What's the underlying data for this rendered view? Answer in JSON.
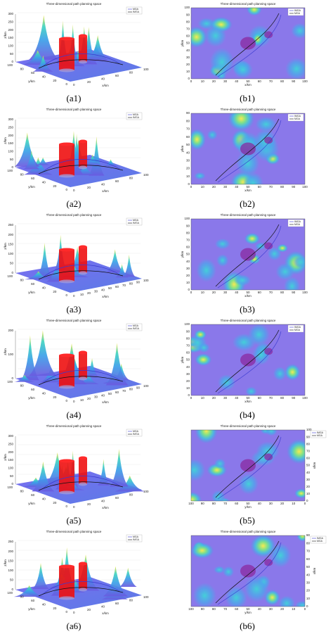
{
  "panels": [
    {
      "label": "(a1)",
      "title": "Three-dimensional path planning space",
      "legend": [
        "MGA",
        "IMGA"
      ],
      "x_label": "x/km",
      "y_label": "y/km",
      "z_label": "z/km",
      "x_ticks": [
        0,
        20,
        40,
        60,
        80,
        100
      ],
      "y_ticks": [
        100,
        80,
        60,
        40,
        20,
        0
      ],
      "z_ticks": [
        0,
        50,
        100,
        150,
        200,
        250,
        300
      ]
    },
    {
      "label": "(b1)",
      "title": "Three-dimensional path planning space",
      "legend": [
        "IMGA",
        "MGA"
      ],
      "x_label": "x/km",
      "y_label": "y/km",
      "x_ticks": [
        0,
        10,
        20,
        30,
        40,
        50,
        60,
        70,
        80,
        90,
        100
      ],
      "y_ticks": [
        0,
        10,
        20,
        30,
        40,
        50,
        60,
        70,
        80,
        90,
        100
      ],
      "y_axis_side": "left"
    },
    {
      "label": "(a2)",
      "title": "Three-dimensional path planning space",
      "legend": [
        "MGA",
        "IMGA"
      ],
      "x_label": "x/km",
      "y_label": "y/km",
      "z_label": "z/km",
      "x_ticks": [
        0,
        20,
        40,
        60,
        80,
        100
      ],
      "y_ticks": [
        100,
        80,
        60,
        40,
        20,
        0
      ],
      "z_ticks": [
        0,
        50,
        100,
        150,
        200,
        250,
        300
      ]
    },
    {
      "label": "(b2)",
      "title": "Three-dimensional path planning space",
      "legend": [
        "IMGA",
        "MGA"
      ],
      "x_label": "x/km",
      "y_label": "y/km",
      "x_ticks": [
        0,
        10,
        20,
        30,
        40,
        50,
        60,
        70,
        80,
        90,
        100
      ],
      "y_ticks": [
        0,
        10,
        20,
        30,
        40,
        50,
        60,
        70,
        80,
        90
      ],
      "y_axis_side": "left"
    },
    {
      "label": "(a3)",
      "title": "Three-dimensional path planning space",
      "legend": [
        "MGA",
        "IMGA"
      ],
      "x_label": "x/km",
      "y_label": "y/km",
      "z_label": "z/km",
      "x_ticks": [
        0,
        10,
        20,
        30,
        40,
        50,
        60,
        70,
        80,
        90,
        100
      ],
      "y_ticks": [
        100,
        80,
        60,
        40,
        20,
        0
      ],
      "z_ticks": [
        0,
        50,
        100,
        150,
        200,
        250
      ]
    },
    {
      "label": "(b3)",
      "title": "Three-dimensional path planning space",
      "legend": [
        "IMGA",
        "MGA"
      ],
      "x_label": "x/km",
      "y_label": "y/km",
      "x_ticks": [
        0,
        10,
        20,
        30,
        40,
        50,
        60,
        70,
        80,
        90,
        100
      ],
      "y_ticks": [
        0,
        10,
        20,
        30,
        40,
        50,
        60,
        70,
        80,
        90,
        100
      ],
      "y_axis_side": "left"
    },
    {
      "label": "(a4)",
      "title": "Three-dimensional path planning space",
      "legend": [
        "MGA",
        "IMGA"
      ],
      "x_label": "x/km",
      "y_label": "y/km",
      "z_label": "z/km",
      "x_ticks": [
        0,
        10,
        20,
        30,
        40,
        50,
        60,
        70,
        80,
        90,
        100
      ],
      "y_ticks": [
        100,
        80,
        60,
        40,
        20,
        0
      ],
      "z_ticks": [
        0,
        100,
        200
      ]
    },
    {
      "label": "(b4)",
      "title": "Three-dimensional path planning space",
      "legend": [
        "IMGA",
        "MGA"
      ],
      "x_label": "x/km",
      "y_label": "y/km",
      "x_ticks": [
        0,
        10,
        20,
        30,
        40,
        50,
        60,
        70,
        80,
        90,
        100
      ],
      "y_ticks": [
        0,
        10,
        20,
        30,
        40,
        50,
        60,
        70,
        80,
        90,
        100
      ],
      "y_axis_side": "left"
    },
    {
      "label": "(a5)",
      "title": "Three-dimensional path planning space",
      "legend": [
        "MGA",
        "IMGA"
      ],
      "x_label": "x/km",
      "y_label": "y/km",
      "z_label": "z/km",
      "x_ticks": [
        0,
        20,
        40,
        60,
        80,
        100
      ],
      "y_ticks": [
        100,
        80,
        60,
        40,
        20,
        0
      ],
      "z_ticks": [
        0,
        50,
        100,
        150,
        200,
        250,
        300
      ]
    },
    {
      "label": "(b5)",
      "title": "Three-dimensional path planning space",
      "legend": [
        "IMGA",
        "MGA"
      ],
      "x_label": "y/km",
      "y_label": "x/km",
      "x_ticks": [
        100,
        90,
        80,
        70,
        60,
        50,
        40,
        30,
        20,
        10,
        0
      ],
      "y_ticks": [
        0,
        10,
        20,
        30,
        40,
        50,
        60,
        70,
        80,
        90,
        100
      ],
      "y_axis_side": "right"
    },
    {
      "label": "(a6)",
      "title": "Three-dimensional path planning space",
      "legend": [
        "MGA",
        "IMGA"
      ],
      "x_label": "x/km",
      "y_label": "y/km",
      "z_label": "z/km",
      "x_ticks": [
        0,
        20,
        40,
        60,
        80,
        100
      ],
      "y_ticks": [
        100,
        80,
        60,
        40,
        20,
        0
      ],
      "z_ticks": [
        0,
        50,
        100,
        150,
        200,
        250
      ]
    },
    {
      "label": "(b6)",
      "title": "Three-dimensional path planning space",
      "legend": [
        "IMGA",
        "MGA"
      ],
      "x_label": "y/km",
      "y_label": "x/km",
      "x_ticks": [
        100,
        90,
        80,
        70,
        60,
        50,
        40,
        30,
        20,
        10,
        0
      ],
      "y_ticks": [
        0,
        10,
        20,
        30,
        40,
        50,
        60,
        70,
        80,
        90
      ],
      "y_axis_side": "right"
    }
  ]
}
